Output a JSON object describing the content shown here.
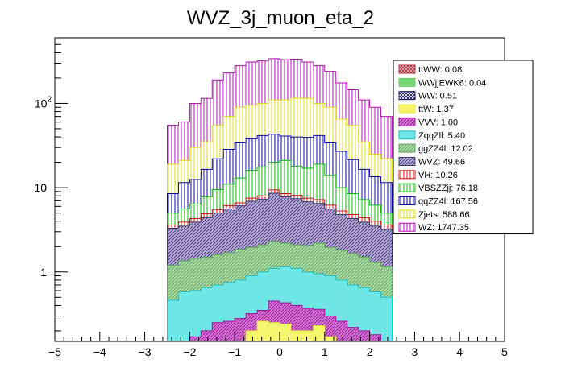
{
  "chart_data": {
    "type": "bar",
    "stacked": true,
    "title": "WVZ_3j_muon_eta_2",
    "xlabel": "",
    "ylabel": "",
    "xlim": [
      -5,
      5
    ],
    "ylim": [
      0.15,
      600
    ],
    "y_scale": "log",
    "grid": false,
    "legend_position": "top-right",
    "x_ticks": [
      -5,
      -4,
      -3,
      -2,
      -1,
      0,
      1,
      2,
      3,
      4,
      5
    ],
    "y_ticks": [
      {
        "value": 1,
        "label": "1"
      },
      {
        "value": 10,
        "label": "10"
      },
      {
        "value": 100,
        "label": "10",
        "exponent": "2"
      }
    ],
    "bin_edges": [
      -2.5,
      -2.25,
      -2.0,
      -1.75,
      -1.5,
      -1.25,
      -1.0,
      -0.75,
      -0.5,
      -0.25,
      0.0,
      0.25,
      0.5,
      0.75,
      1.0,
      1.25,
      1.5,
      1.75,
      2.0,
      2.25,
      2.5
    ],
    "series": [
      {
        "name": "ttWW: 0.08",
        "color": "#a6313b",
        "fill": "#e8b4b8",
        "pattern": "cross"
      },
      {
        "name": "WWjjEWK6: 0.04",
        "color": "#6fcf6f",
        "fill": "#72d472",
        "pattern": "solid"
      },
      {
        "name": "WW: 0.51",
        "color": "#101060",
        "fill": "#ffffff",
        "pattern": "cross"
      },
      {
        "name": "ttW: 1.37",
        "color": "#e8e83a",
        "fill": "#f5f56e",
        "pattern": "solid",
        "values": [
          0.15,
          0.15,
          0.15,
          0.15,
          0.15,
          0.15,
          0.15,
          0.2,
          0.26,
          0.25,
          0.24,
          0.2,
          0.2,
          0.23,
          0.17,
          0.15,
          0.15,
          0.15,
          0.15,
          0.15
        ]
      },
      {
        "name": "VVV: 1.00",
        "color": "#9b159b",
        "fill": "#d070d0",
        "pattern": "hatch",
        "values": [
          0.15,
          0.15,
          0.17,
          0.2,
          0.25,
          0.26,
          0.28,
          0.32,
          0.35,
          0.45,
          0.43,
          0.4,
          0.37,
          0.36,
          0.3,
          0.26,
          0.22,
          0.2,
          0.18,
          0.15
        ]
      },
      {
        "name": "ZqqZll: 5.40",
        "color": "#20c0c8",
        "fill": "#6ee6e6",
        "pattern": "solid",
        "values": [
          0.46,
          0.58,
          0.6,
          0.65,
          0.7,
          0.75,
          0.8,
          0.9,
          1.0,
          1.1,
          1.15,
          1.1,
          1.0,
          0.95,
          0.9,
          0.8,
          0.7,
          0.65,
          0.58,
          0.5
        ]
      },
      {
        "name": "ggZZ4l: 12.02",
        "color": "#5fa35f",
        "fill": "#a8d8a0",
        "pattern": "hatch",
        "values": [
          1.2,
          1.35,
          1.45,
          1.5,
          1.6,
          1.7,
          1.85,
          1.95,
          2.1,
          2.3,
          2.2,
          2.1,
          2.05,
          2.2,
          1.95,
          1.8,
          1.65,
          1.5,
          1.3,
          1.15
        ]
      },
      {
        "name": "WVZ: 49.66",
        "color": "#3a3a6a",
        "fill": "#b4a4d8",
        "pattern": "hatch",
        "values": [
          3.3,
          3.5,
          3.9,
          4.4,
          5.0,
          5.6,
          6.1,
          6.9,
          7.3,
          8.6,
          7.8,
          7.4,
          6.8,
          6.5,
          5.6,
          4.8,
          4.3,
          3.9,
          3.5,
          3.2
        ]
      },
      {
        "name": "VH: 10.26",
        "color": "#c81414",
        "fill": "#ffffff",
        "pattern": "vline",
        "values": [
          3.6,
          3.9,
          4.3,
          4.9,
          5.5,
          6.1,
          6.6,
          7.5,
          8.0,
          9.4,
          8.5,
          8.1,
          7.5,
          7.2,
          6.2,
          5.3,
          4.8,
          4.4,
          4.0,
          3.6
        ]
      },
      {
        "name": "VBSZZjj: 76.18",
        "color": "#10b810",
        "fill": "#ffffff",
        "pattern": "vline",
        "values": [
          5.0,
          5.6,
          6.4,
          7.8,
          9.5,
          11.0,
          13.0,
          16.0,
          17.5,
          20.0,
          21.0,
          18.0,
          17.0,
          19.0,
          14.0,
          10.0,
          8.5,
          7.2,
          6.2,
          5.0
        ]
      },
      {
        "name": "qqZZ4l: 167.56",
        "color": "#0a0aa0",
        "fill": "#ffffff",
        "pattern": "vline",
        "values": [
          8.5,
          11.5,
          12.5,
          16.5,
          22.0,
          28.5,
          34.0,
          38.0,
          41.5,
          43.0,
          41.0,
          40.0,
          39.5,
          41.5,
          34.0,
          27.0,
          21.5,
          16.5,
          13.5,
          11.5
        ]
      },
      {
        "name": "Zjets: 588.66",
        "color": "#dede20",
        "fill": "#ffffff",
        "pattern": "vline",
        "values": [
          19.0,
          21.0,
          30.0,
          35.0,
          55.0,
          70.0,
          90.0,
          95.0,
          100.0,
          110.0,
          110.0,
          115.0,
          115.0,
          100.0,
          90.0,
          65.0,
          55.0,
          35.0,
          25.0,
          22.0
        ]
      },
      {
        "name": "WZ: 1747.35",
        "color": "#b010b0",
        "fill": "#ffffff",
        "pattern": "vline",
        "values": [
          55.0,
          60.0,
          100.0,
          115.0,
          190.0,
          230.0,
          280.0,
          310.0,
          320.0,
          340.0,
          330.0,
          335.0,
          310.0,
          280.0,
          240.0,
          175.0,
          145.0,
          110.0,
          90.0,
          70.0
        ]
      }
    ]
  }
}
